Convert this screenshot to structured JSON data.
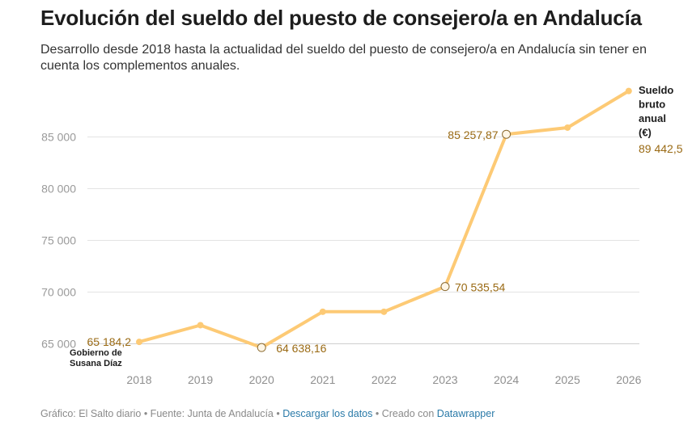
{
  "header": {
    "title": "Evolución del sueldo del puesto de consejero/a en Andalucía",
    "subtitle": "Desarrollo desde 2018 hasta la actualidad del sueldo del puesto de consejero/a en Andalucía sin tener en cuenta los complementos anuales."
  },
  "chart_data": {
    "type": "line",
    "series": [
      {
        "name": "Sueldo bruto anual (€)",
        "x": [
          2018,
          2019,
          2020,
          2021,
          2022,
          2023,
          2024,
          2025,
          2026
        ],
        "values": [
          65184.2,
          66800,
          64638.16,
          68100,
          68100,
          70535.54,
          85257.87,
          85900,
          89442.5
        ]
      }
    ],
    "y_ticks": [
      "65 000",
      "70 000",
      "75 000",
      "80 000",
      "85 000"
    ],
    "y_tick_values": [
      65000,
      70000,
      75000,
      80000,
      85000
    ],
    "x_ticks": [
      "2018",
      "2019",
      "2020",
      "2021",
      "2022",
      "2023",
      "2024",
      "2025",
      "2026"
    ],
    "ylim": [
      64500,
      89600
    ],
    "grid": true,
    "value_labels": [
      {
        "index": 0,
        "text": "65 184,2"
      },
      {
        "index": 2,
        "text": "64 638,16"
      },
      {
        "index": 5,
        "text": "70 535,54"
      },
      {
        "index": 6,
        "text": "85 257,87"
      },
      {
        "index": 8,
        "text": "89 442,5"
      }
    ],
    "series_label_lines": [
      "Sueldo",
      "bruto",
      "anual",
      "(€)"
    ],
    "annotation_lines": [
      "Gobierno de",
      "Susana Díaz"
    ],
    "colors": {
      "line": "#fdca75",
      "value_label": "#9a6a14",
      "grid": "#e3e3e3",
      "tick": "#9a9a9a"
    }
  },
  "footer": {
    "prefix": "Gráfico: El Salto diario • Fuente: Junta de Andalucía • ",
    "download_link": "Descargar los datos",
    "middle": " • Creado con ",
    "tool_link": "Datawrapper"
  }
}
